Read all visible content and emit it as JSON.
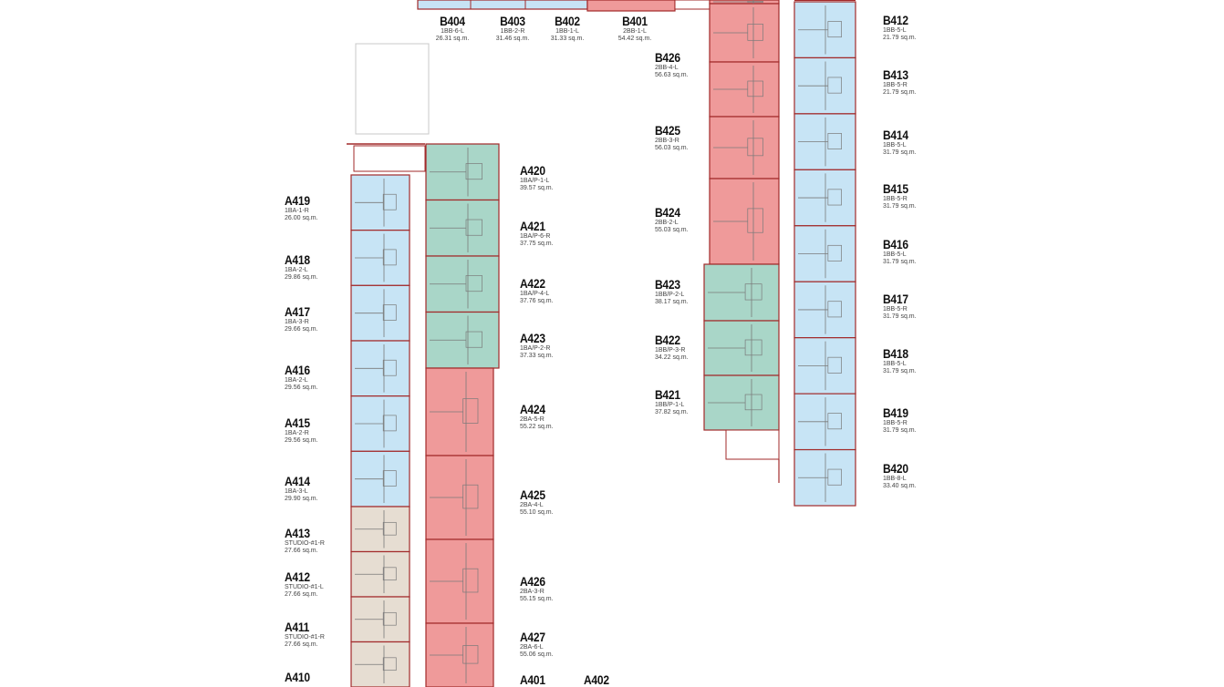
{
  "colors": {
    "one_bedroom": "#c7e4f5",
    "two_bedroom": "#ef9a9a",
    "one_bedroom_plus": "#a9d6c8",
    "studio": "#e6ddd2",
    "wall": "#a22a2a"
  },
  "units_b_top": [
    {
      "code": "B404",
      "type": "1BB-6-L",
      "area": "26.31 sq.m."
    },
    {
      "code": "B403",
      "type": "1BB-2-R",
      "area": "31.46 sq.m."
    },
    {
      "code": "B402",
      "type": "1BB-1-L",
      "area": "31.33 sq.m."
    },
    {
      "code": "B401",
      "type": "2BB-1-L",
      "area": "54.42 sq.m."
    }
  ],
  "units_b_center": [
    {
      "code": "B426",
      "type": "2BB-4-L",
      "area": "56.63 sq.m."
    },
    {
      "code": "B425",
      "type": "2BB-3-R",
      "area": "56.03 sq.m."
    },
    {
      "code": "B424",
      "type": "2BB-2-L",
      "area": "55.03 sq.m."
    },
    {
      "code": "B423",
      "type": "1BB/P-2-L",
      "area": "38.17 sq.m."
    },
    {
      "code": "B422",
      "type": "1BB/P-3-R",
      "area": "34.22 sq.m."
    },
    {
      "code": "B421",
      "type": "1BB/P-1-L",
      "area": "37.82 sq.m."
    }
  ],
  "units_b_right": [
    {
      "code": "B412",
      "type": "1BB-5-L",
      "area": "21.79 sq.m."
    },
    {
      "code": "B413",
      "type": "1BB-5-R",
      "area": "21.79 sq.m."
    },
    {
      "code": "B414",
      "type": "1BB-5-L",
      "area": "31.79 sq.m."
    },
    {
      "code": "B415",
      "type": "1BB-5-R",
      "area": "31.79 sq.m."
    },
    {
      "code": "B416",
      "type": "1BB-5-L",
      "area": "31.79 sq.m."
    },
    {
      "code": "B417",
      "type": "1BB-5-R",
      "area": "31.79 sq.m."
    },
    {
      "code": "B418",
      "type": "1BB-5-L",
      "area": "31.79 sq.m."
    },
    {
      "code": "B419",
      "type": "1BB-5-R",
      "area": "31.79 sq.m."
    },
    {
      "code": "B420",
      "type": "1BB-8-L",
      "area": "33.40 sq.m."
    }
  ],
  "units_a_left": [
    {
      "code": "A419",
      "type": "1BA-1-R",
      "area": "26.00 sq.m."
    },
    {
      "code": "A418",
      "type": "1BA-2-L",
      "area": "29.86 sq.m."
    },
    {
      "code": "A417",
      "type": "1BA-3-R",
      "area": "29.66 sq.m."
    },
    {
      "code": "A416",
      "type": "1BA-2-L",
      "area": "29.56 sq.m."
    },
    {
      "code": "A415",
      "type": "1BA-2-R",
      "area": "29.56 sq.m."
    },
    {
      "code": "A414",
      "type": "1BA-3-L",
      "area": "29.90 sq.m."
    },
    {
      "code": "A413",
      "type": "STUDIO-#1-R",
      "area": "27.66 sq.m."
    },
    {
      "code": "A412",
      "type": "STUDIO-#1-L",
      "area": "27.66 sq.m."
    },
    {
      "code": "A411",
      "type": "STUDIO-#1-R",
      "area": "27.66 sq.m."
    },
    {
      "code": "A410",
      "type": "",
      "area": ""
    }
  ],
  "units_a_right": [
    {
      "code": "A420",
      "type": "1BA/P-1-L",
      "area": "39.57 sq.m."
    },
    {
      "code": "A421",
      "type": "1BA/P-6-R",
      "area": "37.75 sq.m."
    },
    {
      "code": "A422",
      "type": "1BA/P-4-L",
      "area": "37.76 sq.m."
    },
    {
      "code": "A423",
      "type": "1BA/P-2-R",
      "area": "37.33 sq.m."
    },
    {
      "code": "A424",
      "type": "2BA-5-R",
      "area": "55.22 sq.m."
    },
    {
      "code": "A425",
      "type": "2BA-4-L",
      "area": "55.10 sq.m."
    },
    {
      "code": "A426",
      "type": "2BA-3-R",
      "area": "55.15 sq.m."
    },
    {
      "code": "A427",
      "type": "2BA-6-L",
      "area": "55.06 sq.m."
    },
    {
      "code": "A401",
      "type": "",
      "area": ""
    },
    {
      "code": "A402",
      "type": "",
      "area": ""
    }
  ]
}
